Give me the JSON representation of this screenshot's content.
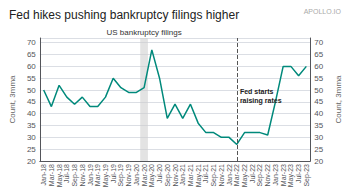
{
  "chart_data": {
    "type": "line",
    "title": "Fed hikes pushing bankruptcy filings higher",
    "source": "APOLLO.IO",
    "ylabel": "Count, 3mma",
    "y2label": "Count, 3mma",
    "categories": [
      "Jan-18",
      "Mar-18",
      "May-18",
      "Jul-18",
      "Sep-18",
      "Nov-18",
      "Jan-19",
      "Mar-19",
      "May-19",
      "Jul-19",
      "Sep-19",
      "Nov-19",
      "Jan-20",
      "Mar-20",
      "May-20",
      "Jul-20",
      "Sep-20",
      "Nov-20",
      "Jan-21",
      "Mar-21",
      "May-21",
      "Jul-21",
      "Sep-21",
      "Nov-21",
      "Jan-22",
      "Mar-22",
      "May-22",
      "Jul-22",
      "Sep-22",
      "Nov-22",
      "Jan-23",
      "Mar-23",
      "May-23",
      "Jul-23",
      "Sep-23"
    ],
    "values": [
      50,
      43,
      52,
      47,
      44,
      47,
      43,
      43,
      47,
      55,
      51,
      49,
      49,
      51,
      67,
      55,
      38,
      44,
      38,
      44,
      36,
      32,
      32,
      30,
      30,
      27,
      32,
      32,
      32,
      31,
      45,
      60,
      60,
      56,
      60
    ],
    "color": "#00897B",
    "ylim": [
      20,
      72
    ],
    "yticks": [
      20,
      25,
      30,
      35,
      40,
      45,
      50,
      55,
      60,
      65,
      70
    ],
    "y2lim": [
      20,
      72
    ],
    "y2ticks": [
      20,
      25,
      30,
      35,
      40,
      45,
      50,
      55,
      60,
      65,
      70
    ],
    "grid": true,
    "shade": {
      "start": "Mar-20",
      "end": "May-20",
      "label": "US bankruptcy filings"
    },
    "vline": "Mar-22",
    "annotations": [
      {
        "text": "Fed starts\nraising rates",
        "x": "Mar-22"
      }
    ]
  }
}
